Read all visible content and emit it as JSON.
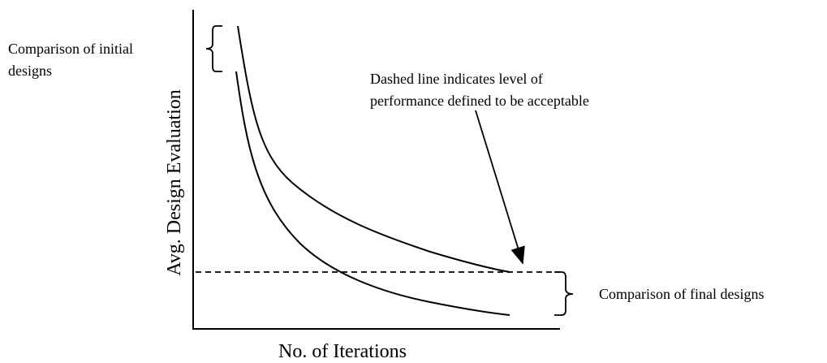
{
  "axes": {
    "y_label": "Avg. Design Evaluation",
    "x_label": "No. of Iterations"
  },
  "annotations": {
    "initial": {
      "lines": [
        "Comparison of initial",
        "designs"
      ]
    },
    "dashed": {
      "lines": [
        "Dashed line indicates level of",
        "performance defined to be acceptable"
      ]
    },
    "final": {
      "lines": [
        "Comparison of final designs"
      ]
    }
  }
}
